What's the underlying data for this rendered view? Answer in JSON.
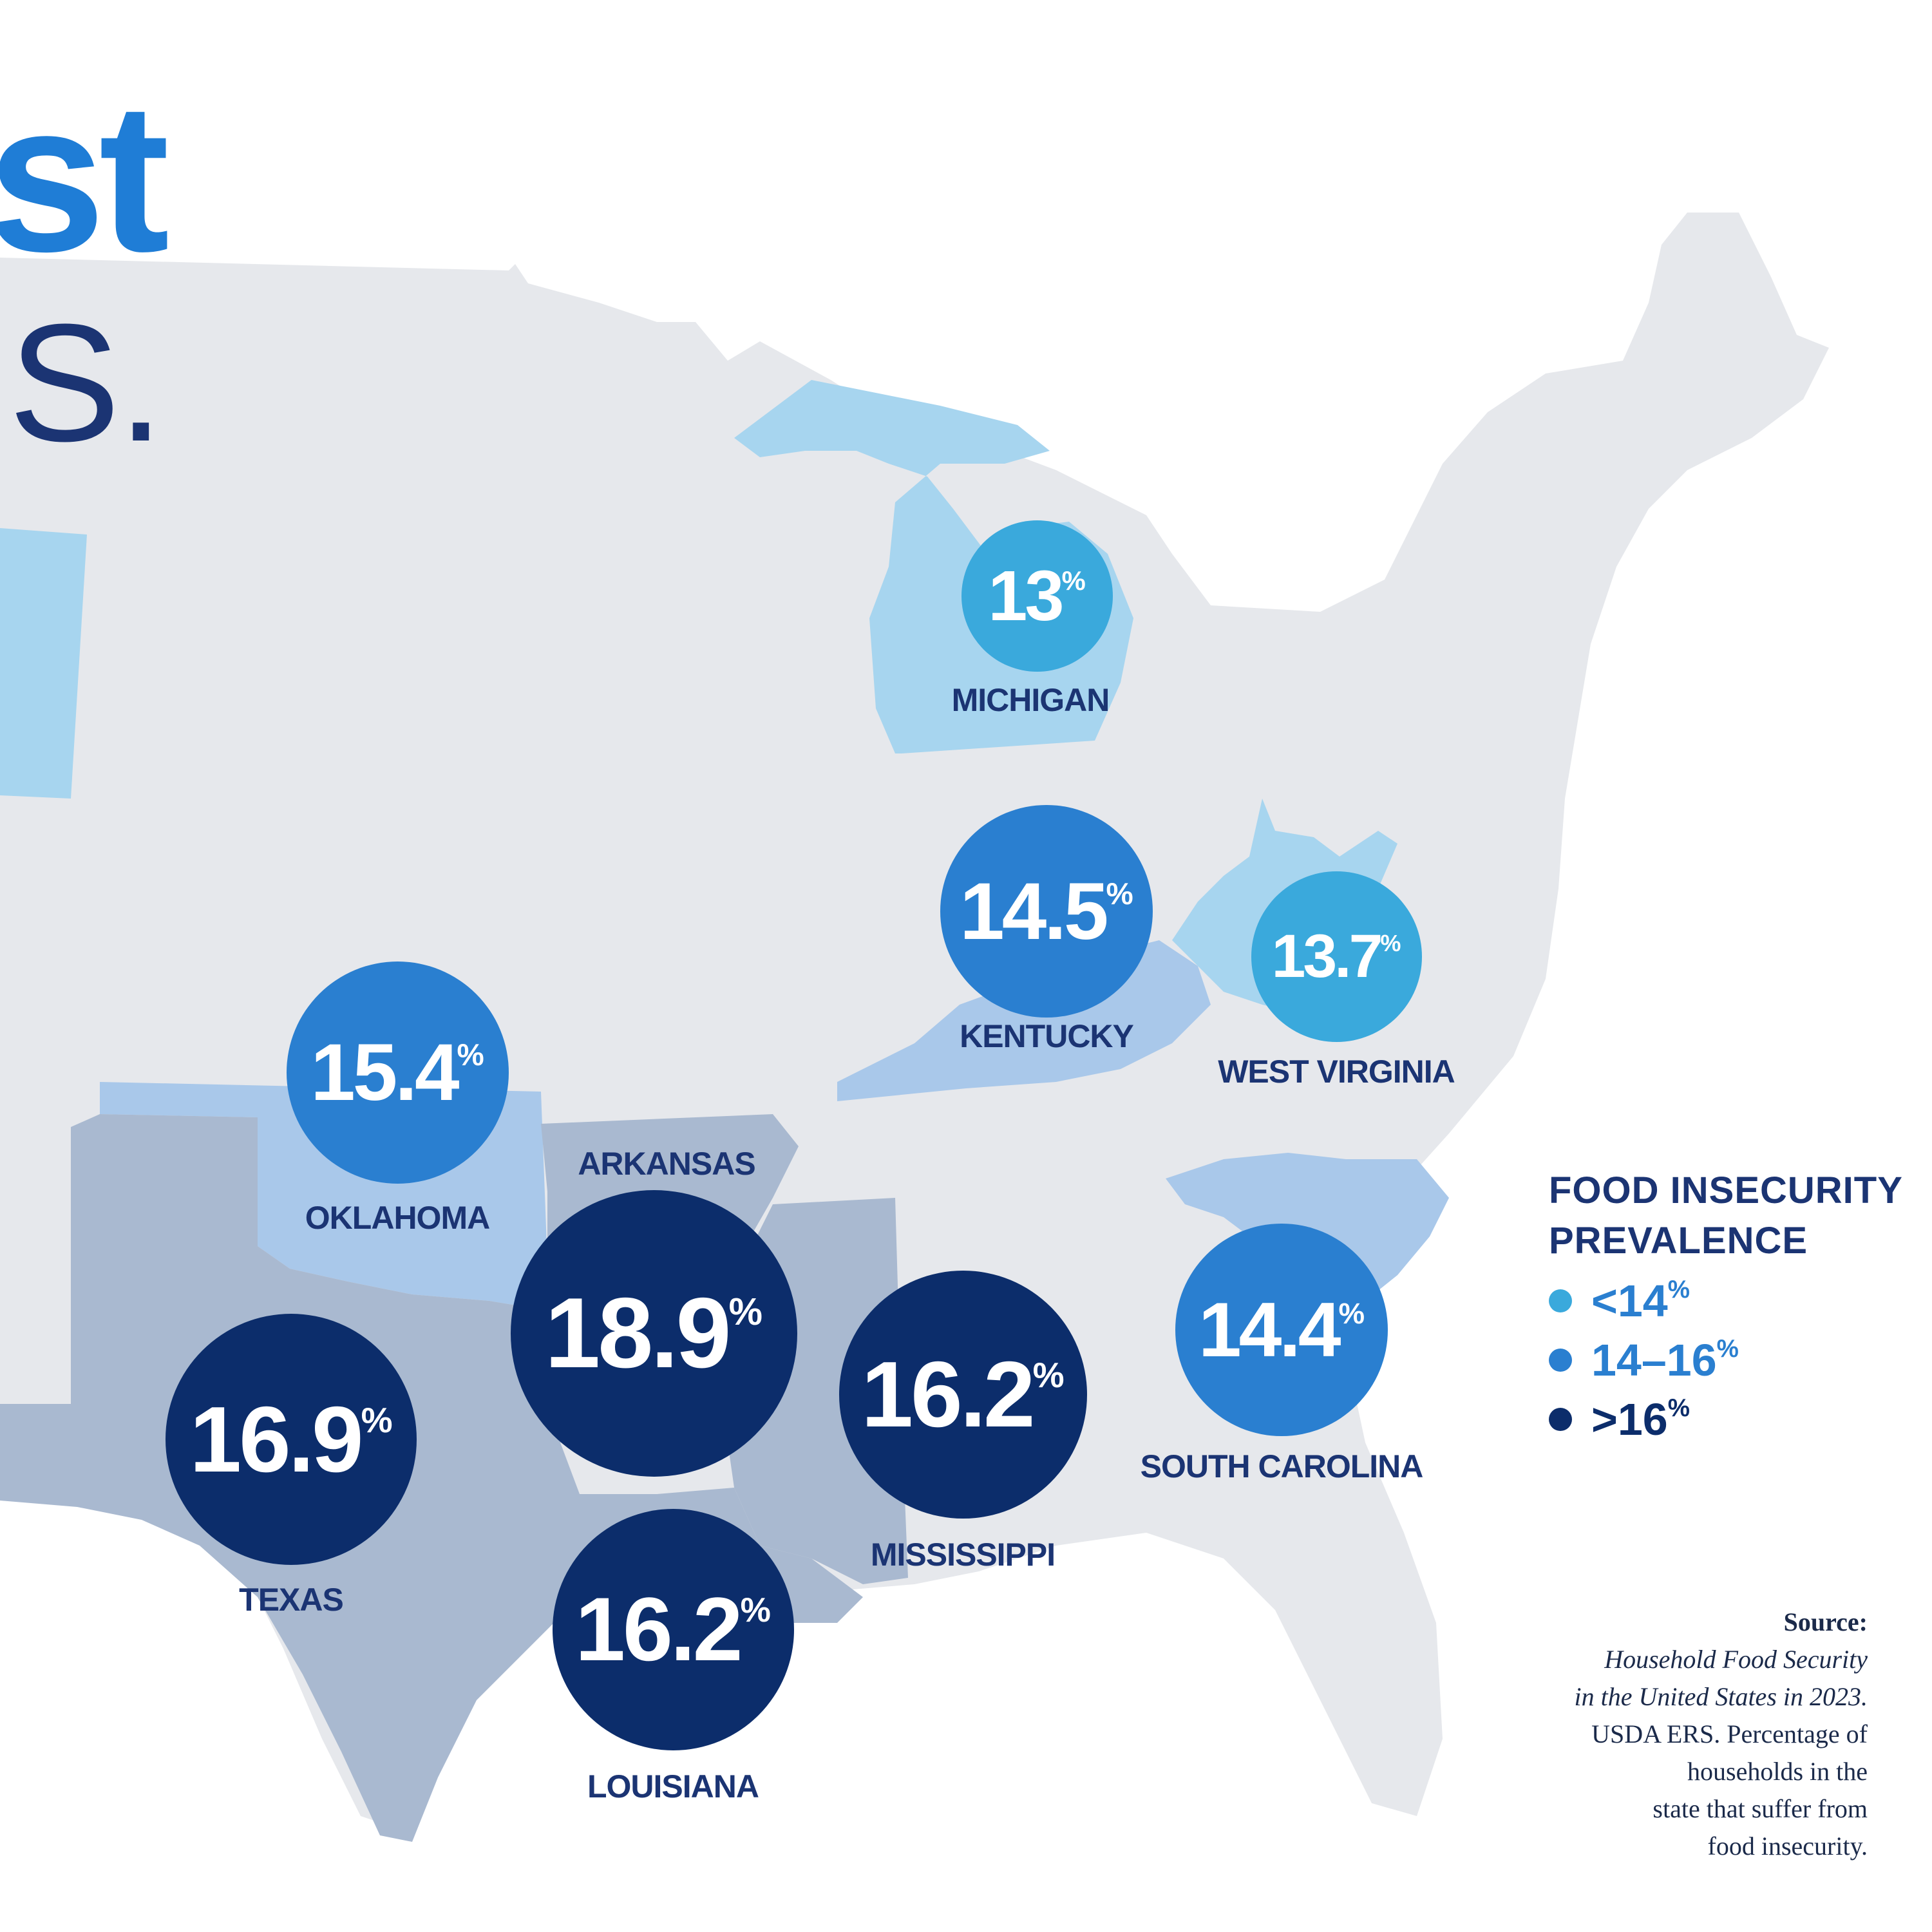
{
  "title": {
    "line1_fragment": "st",
    "line2_fragment": ".S."
  },
  "colors": {
    "land": "#e6e8ec",
    "tier_low": "#3aa9dc",
    "tier_mid": "#2a7fd0",
    "tier_high": "#0c2d6b",
    "title_blue": "#1f7dd6",
    "title_navy": "#1b3473",
    "state_fill_low": "#a7d5ef",
    "state_fill_mid": "#a9c8ea",
    "state_fill_high": "#a9b9d0"
  },
  "states": [
    {
      "name": "MICHIGAN",
      "value": "13",
      "tier": "low"
    },
    {
      "name": "KENTUCKY",
      "value": "14.5",
      "tier": "mid"
    },
    {
      "name": "WEST VIRGINIA",
      "value": "13.7",
      "tier": "low"
    },
    {
      "name": "OKLAHOMA",
      "value": "15.4",
      "tier": "mid"
    },
    {
      "name": "ARKANSAS",
      "value": "18.9",
      "tier": "high"
    },
    {
      "name": "TEXAS",
      "value": "16.9",
      "tier": "high"
    },
    {
      "name": "MISSISSIPPI",
      "value": "16.2",
      "tier": "high"
    },
    {
      "name": "LOUISIANA",
      "value": "16.2",
      "tier": "high"
    },
    {
      "name": "SOUTH CAROLINA",
      "value": "14.4",
      "tier": "mid"
    }
  ],
  "percent_sign": "%",
  "legend": {
    "title_line1": "FOOD INSECURITY",
    "title_line2": "PREVALENCE",
    "items": [
      {
        "label": "<14",
        "suffix": "%",
        "tier": "low"
      },
      {
        "label": "14–16",
        "suffix": "%",
        "tier": "mid"
      },
      {
        "label": ">16",
        "suffix": "%",
        "tier": "high"
      }
    ]
  },
  "source": {
    "heading": "Source:",
    "italic_line1": "Household Food Security",
    "italic_line2": "in the United States in 2023.",
    "line3": "USDA ERS. Percentage of",
    "line4": "households in the",
    "line5": "state that suffer from",
    "line6": "food insecurity."
  }
}
